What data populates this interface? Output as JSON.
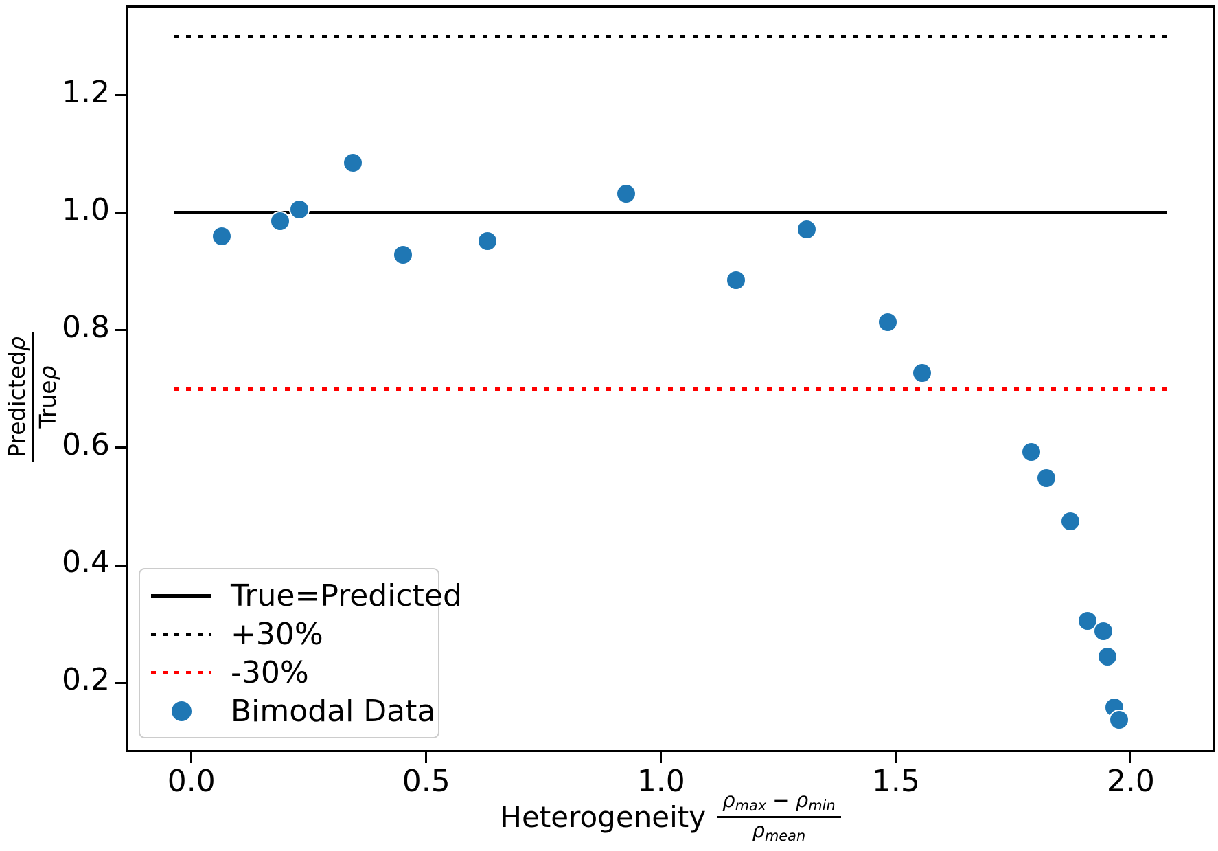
{
  "chart_data": {
    "type": "scatter",
    "title": "",
    "xlabel_text": "Heterogeneity",
    "xlabel_fraction": {
      "num_sym1": "ρ",
      "num_sub1": "max",
      "num_op": "−",
      "num_sym2": "ρ",
      "num_sub2": "min",
      "den_sym": "ρ",
      "den_sub": "mean"
    },
    "ylabel_fraction": {
      "num_text": "Predicted",
      "num_sym": "ρ",
      "den_text": "True",
      "den_sym": "ρ"
    },
    "xlim": [
      -0.14,
      2.18
    ],
    "ylim": [
      0.082,
      1.353
    ],
    "x_ticks": [
      {
        "v": 0.0,
        "label": "0.0"
      },
      {
        "v": 0.5,
        "label": "0.5"
      },
      {
        "v": 1.0,
        "label": "1.0"
      },
      {
        "v": 1.5,
        "label": "1.5"
      },
      {
        "v": 2.0,
        "label": "2.0"
      }
    ],
    "y_ticks": [
      {
        "v": 1.2,
        "label": "1.2"
      },
      {
        "v": 1.0,
        "label": "1.0"
      },
      {
        "v": 0.8,
        "label": "0.8"
      },
      {
        "v": 0.6,
        "label": "0.6"
      },
      {
        "v": 0.4,
        "label": "0.4"
      },
      {
        "v": 0.2,
        "label": "0.2"
      }
    ],
    "line_span_x": [
      -0.037,
      2.078
    ],
    "grid": false,
    "legend_position": "lower left",
    "series": [
      {
        "name": "True=Predicted",
        "kind": "hline",
        "y": 1.0,
        "style": "solid",
        "color": "#000000"
      },
      {
        "name": "+30%",
        "kind": "hline",
        "y": 1.3,
        "style": "dotted-black",
        "color": "#000000"
      },
      {
        "name": "-30%",
        "kind": "hline",
        "y": 0.7,
        "style": "dotted-red",
        "color": "#ff0000"
      },
      {
        "name": "Bimodal Data",
        "kind": "scatter",
        "color": "#1f77b4",
        "points": [
          [
            0.064,
            0.96
          ],
          [
            0.189,
            0.986
          ],
          [
            0.23,
            1.006
          ],
          [
            0.344,
            1.085
          ],
          [
            0.45,
            0.929
          ],
          [
            0.63,
            0.952
          ],
          [
            0.926,
            1.033
          ],
          [
            1.159,
            0.885
          ],
          [
            1.31,
            0.972
          ],
          [
            1.483,
            0.814
          ],
          [
            1.556,
            0.728
          ],
          [
            1.788,
            0.593
          ],
          [
            1.82,
            0.549
          ],
          [
            1.871,
            0.475
          ],
          [
            1.908,
            0.305
          ],
          [
            1.942,
            0.288
          ],
          [
            1.95,
            0.245
          ],
          [
            1.965,
            0.158
          ],
          [
            1.975,
            0.137
          ]
        ]
      }
    ],
    "legend": {
      "entries": [
        {
          "sample": "solid-black-line",
          "label": "True=Predicted"
        },
        {
          "sample": "dotted-black-line",
          "label": "+30%"
        },
        {
          "sample": "dotted-red-line",
          "label": "-30%"
        },
        {
          "sample": "blue-circle",
          "label": "Bimodal Data"
        }
      ]
    },
    "marker_color": "#1f77b4"
  }
}
